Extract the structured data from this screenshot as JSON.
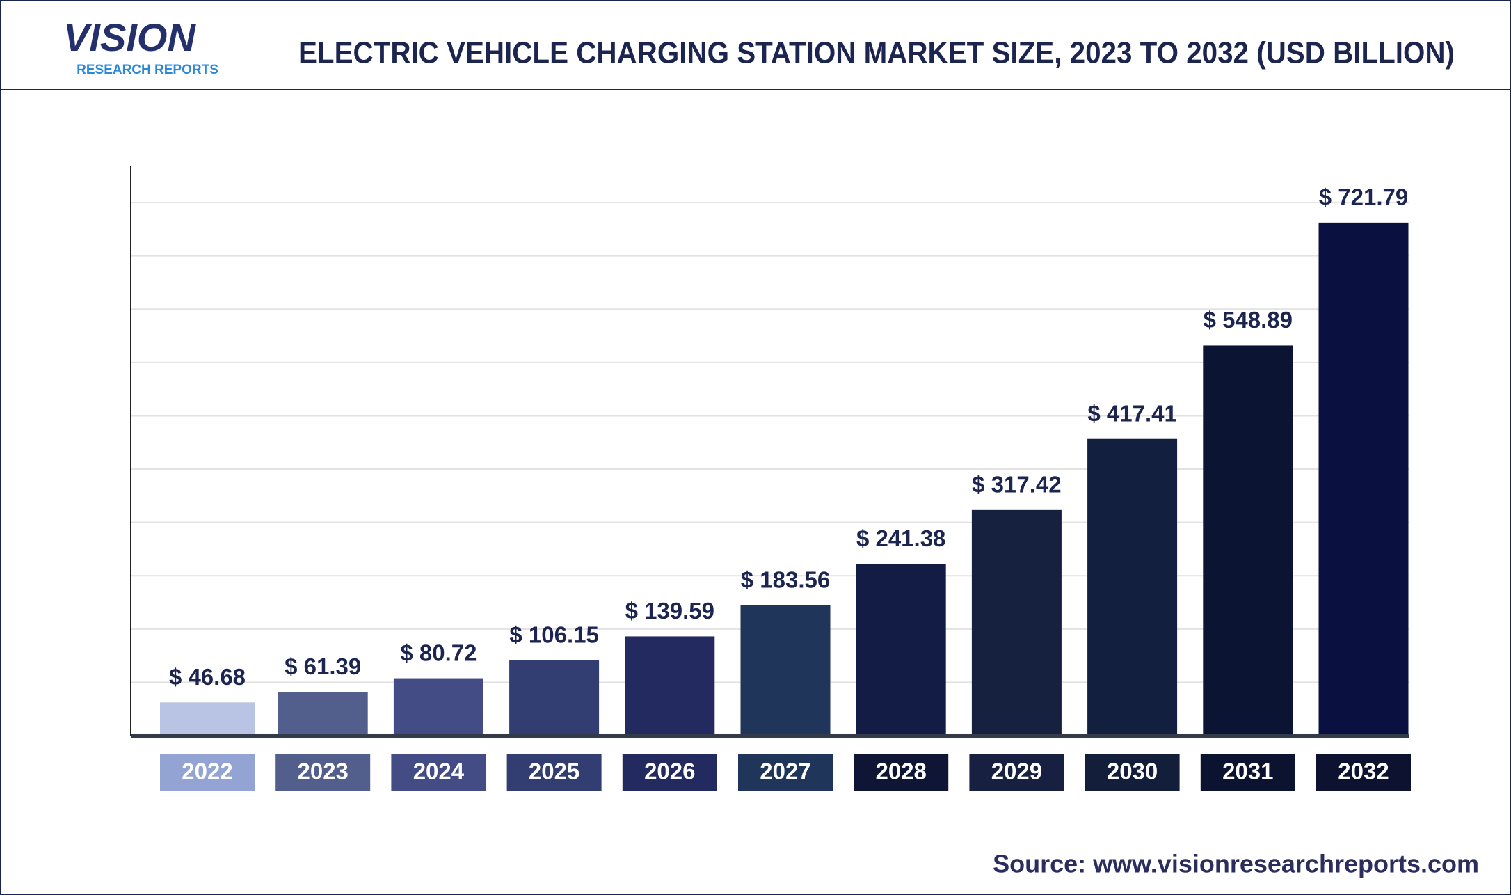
{
  "logo": {
    "name": "VISION",
    "tagline": "RESEARCH REPORTS"
  },
  "source": "Source: www.visionresearchreports.com",
  "chart_data": {
    "type": "bar",
    "title": "ELECTRIC VEHICLE CHARGING STATION MARKET SIZE, 2023 TO 2032 (USD BILLION)",
    "categories": [
      "2022",
      "2023",
      "2024",
      "2025",
      "2026",
      "2027",
      "2028",
      "2029",
      "2030",
      "2031",
      "2032"
    ],
    "values": [
      46.68,
      61.39,
      80.72,
      106.15,
      139.59,
      183.56,
      241.38,
      317.42,
      417.41,
      548.89,
      721.79
    ],
    "value_labels": [
      "$ 46.68",
      "$ 61.39",
      "$ 80.72",
      "$ 106.15",
      "$ 139.59",
      "$ 183.56",
      "$ 241.38",
      "$ 317.42",
      "$ 417.41",
      "$ 548.89",
      "$ 721.79"
    ],
    "colors": [
      "#b9c3e3",
      "#525e8c",
      "#434c85",
      "#323d72",
      "#232a5f",
      "#1f3559",
      "#121c44",
      "#16213f",
      "#121f3f",
      "#0c1433",
      "#0a1140"
    ],
    "label_colors": [
      "#93a3d4",
      "#525e8c",
      "#434c85",
      "#323d72",
      "#232a5f",
      "#1f3559",
      "#0f1535",
      "#172040",
      "#131e3b",
      "#0c1330",
      "#0c1230"
    ],
    "ylim": [
      0,
      800
    ],
    "yticks": [
      75,
      150,
      225,
      300,
      375,
      450,
      525,
      600,
      675,
      750
    ],
    "grid": true
  }
}
